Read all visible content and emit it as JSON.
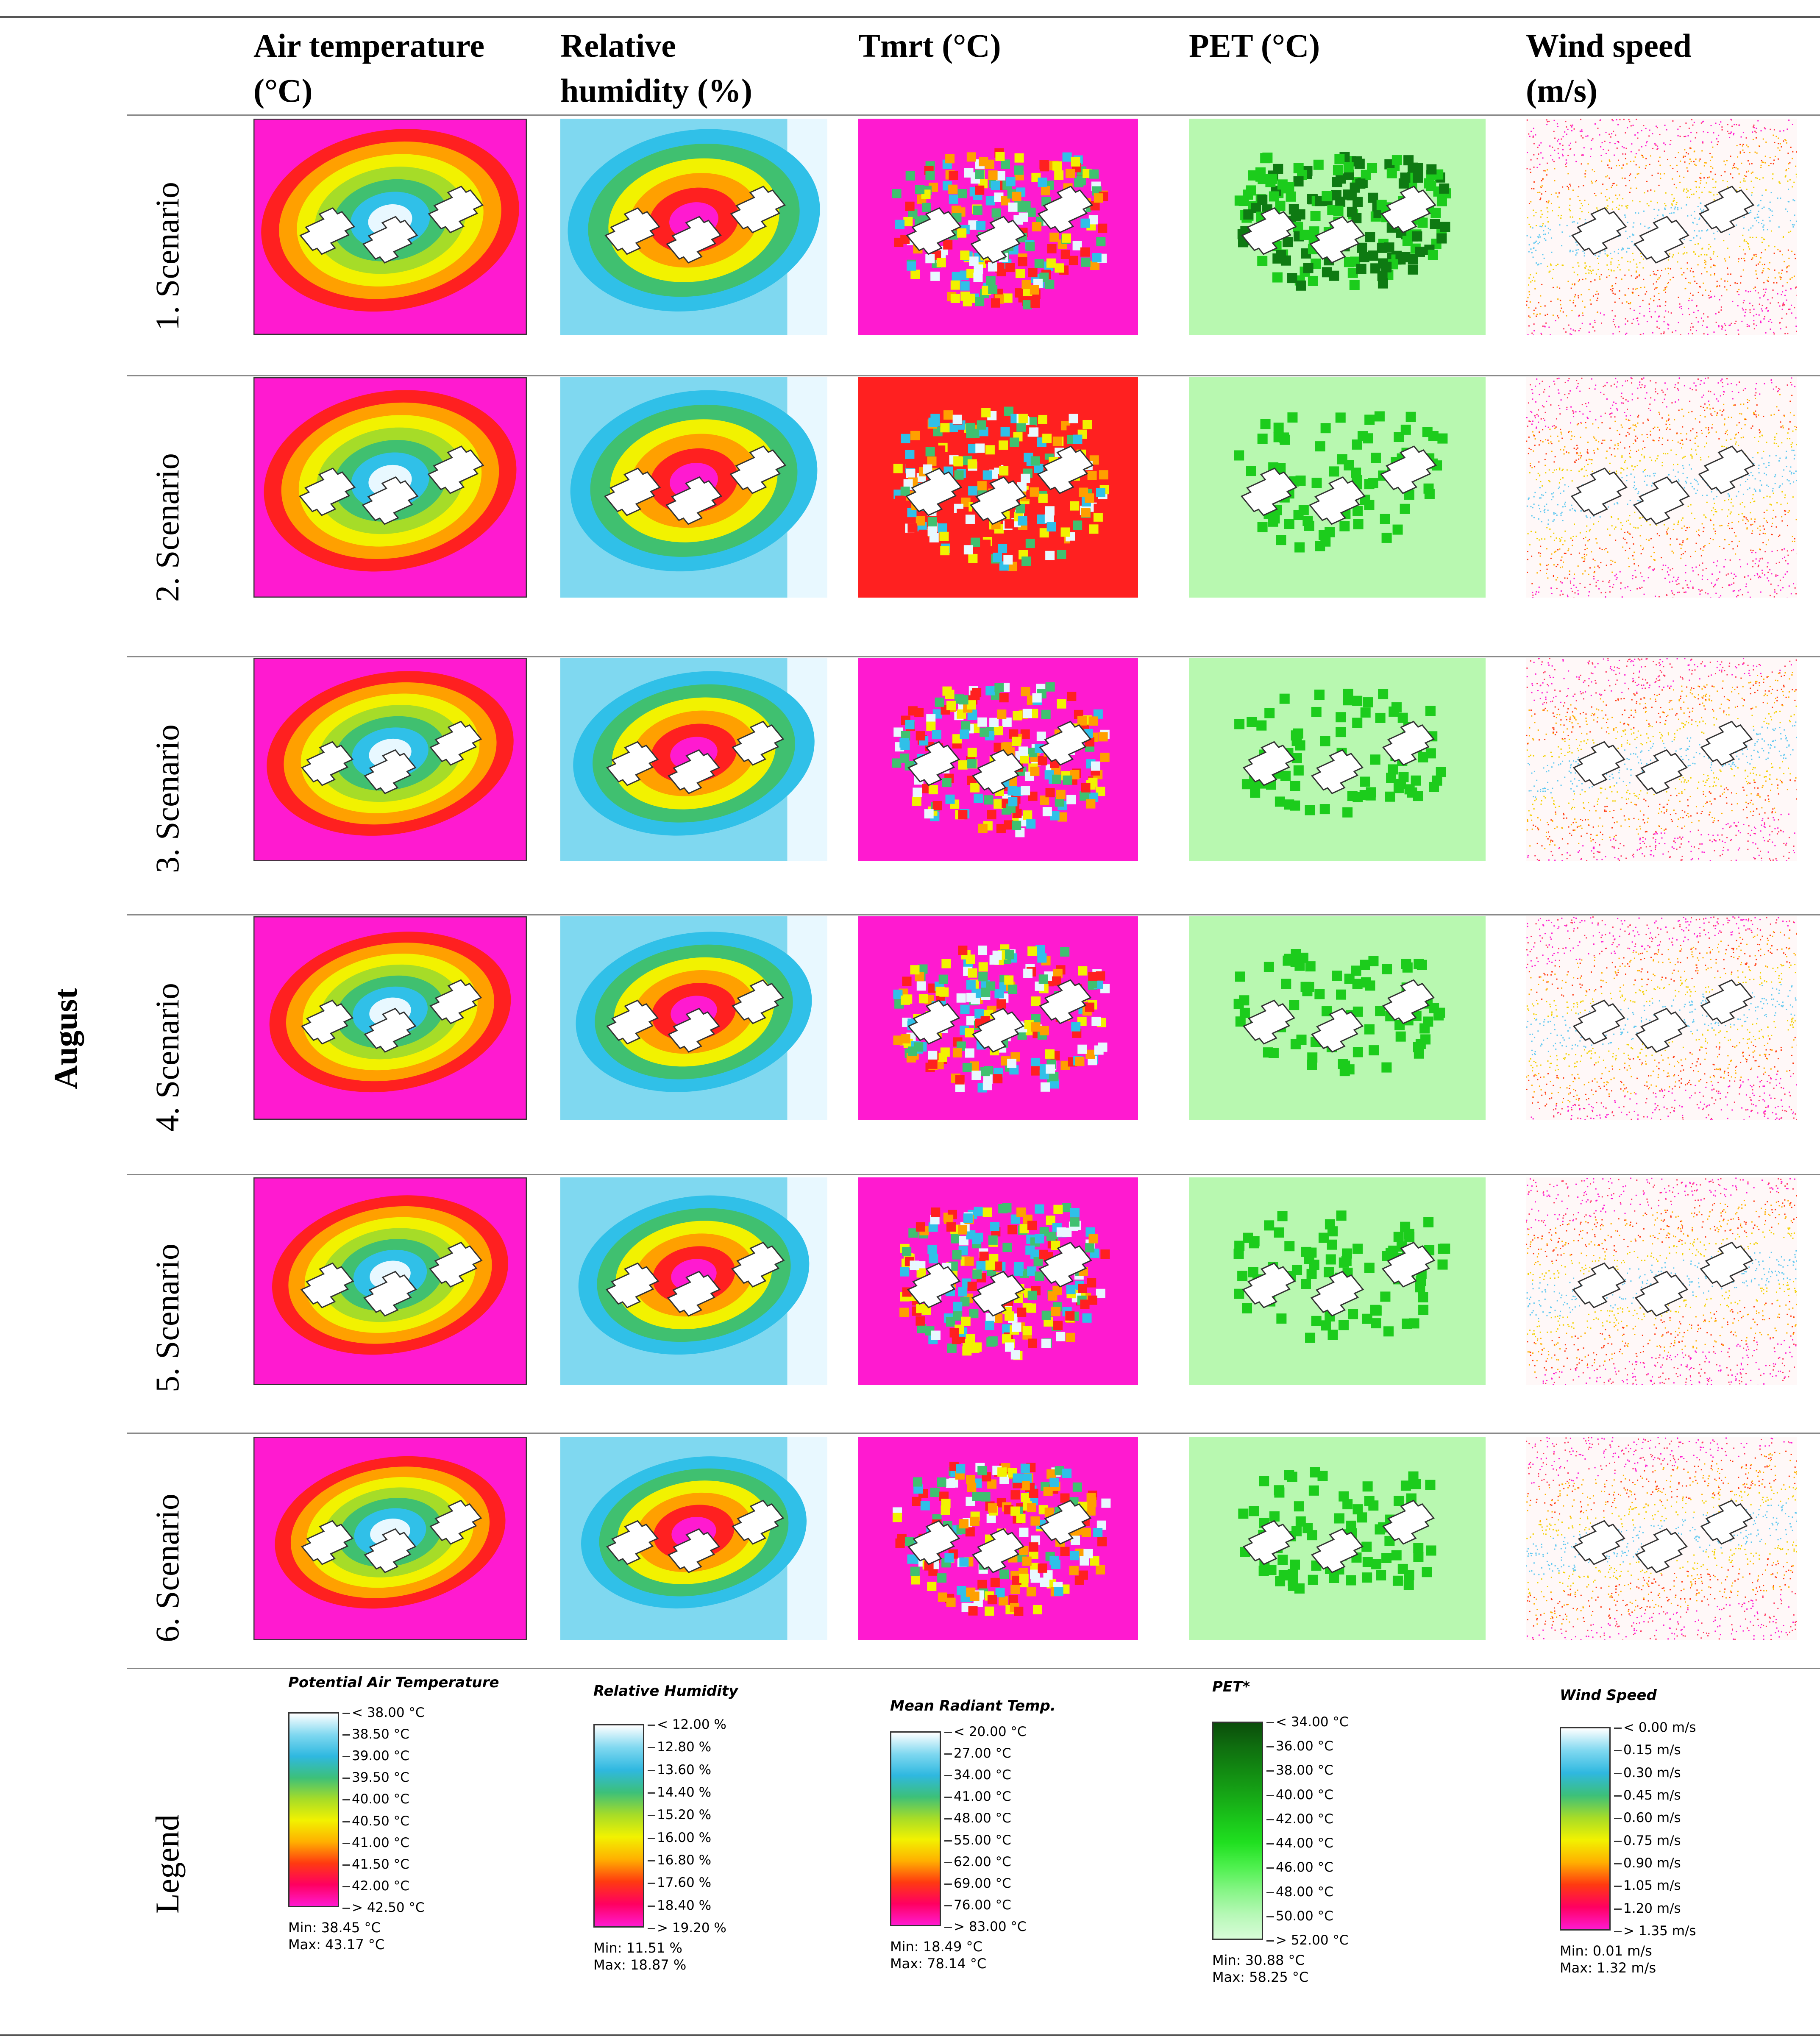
{
  "month": "August",
  "columns": [
    {
      "title": "Air temperature\n(°C)"
    },
    {
      "title": "Relative\nhumidity (%)"
    },
    {
      "title": "Tmrt (°C)"
    },
    {
      "title": "PET (°C)"
    },
    {
      "title": "Wind speed\n(m/s)"
    }
  ],
  "rows": [
    {
      "label": "1. Scenario"
    },
    {
      "label": "2. Scenario"
    },
    {
      "label": "3. Scenario"
    },
    {
      "label": "4. Scenario"
    },
    {
      "label": "5. Scenario"
    },
    {
      "label": "6. Scenario"
    }
  ],
  "legend_row_label": "Legend",
  "legends": [
    {
      "title": "Potential Air Temperature",
      "ticks": [
        "< 38.00 °C",
        "38.50 °C",
        "39.00 °C",
        "39.50 °C",
        "40.00 °C",
        "40.50 °C",
        "41.00 °C",
        "41.50 °C",
        "42.00 °C",
        "> 42.50 °C"
      ],
      "min": "Min: 38.45 °C",
      "max": "Max: 43.17 °C",
      "colors": [
        "#ffffff",
        "#7fd8f0",
        "#2fb8e0",
        "#3cc07a",
        "#a6dc28",
        "#f2f200",
        "#ffb000",
        "#ff3a10",
        "#ff0060",
        "#ff1ad0"
      ]
    },
    {
      "title": "Relative Humidity",
      "ticks": [
        "< 12.00 %",
        "12.80 %",
        "13.60 %",
        "14.40 %",
        "15.20 %",
        "16.00 %",
        "16.80 %",
        "17.60 %",
        "18.40 %",
        "> 19.20 %"
      ],
      "min": "Min: 11.51 %",
      "max": "Max: 18.87 %",
      "colors": [
        "#ffffff",
        "#7fd8f0",
        "#2fb8e0",
        "#3cc07a",
        "#a6dc28",
        "#f2f200",
        "#ffb000",
        "#ff3a10",
        "#ff0060",
        "#ff1ad0"
      ]
    },
    {
      "title": "Mean Radiant Temp.",
      "ticks": [
        "< 20.00 °C",
        "27.00 °C",
        "34.00 °C",
        "41.00 °C",
        "48.00 °C",
        "55.00 °C",
        "62.00 °C",
        "69.00 °C",
        "76.00 °C",
        "> 83.00 °C"
      ],
      "min": "Min: 18.49 °C",
      "max": "Max: 78.14 °C",
      "colors": [
        "#ffffff",
        "#7fd8f0",
        "#2fb8e0",
        "#3cc07a",
        "#a6dc28",
        "#f2f200",
        "#ffb000",
        "#ff3a10",
        "#ff0060",
        "#ff1ad0"
      ]
    },
    {
      "title": "PET*",
      "ticks": [
        "< 34.00 °C",
        "36.00 °C",
        "38.00 °C",
        "40.00 °C",
        "42.00 °C",
        "44.00 °C",
        "46.00 °C",
        "48.00 °C",
        "50.00 °C",
        "> 52.00 °C"
      ],
      "min": "Min: 30.88 °C",
      "max": "Max: 58.25 °C",
      "colors": [
        "#0b4d0b",
        "#0f6e0f",
        "#128a12",
        "#16a616",
        "#1ac41a",
        "#20e020",
        "#4ef04e",
        "#86f586",
        "#b6f8b6",
        "#d8fcd8"
      ]
    },
    {
      "title": "Wind Speed",
      "ticks": [
        "< 0.00 m/s",
        "0.15 m/s",
        "0.30 m/s",
        "0.45 m/s",
        "0.60 m/s",
        "0.75 m/s",
        "0.90 m/s",
        "1.05 m/s",
        "1.20 m/s",
        "> 1.35 m/s"
      ],
      "min": "Min: 0.01 m/s",
      "max": "Max: 1.32 m/s",
      "colors": [
        "#ffffff",
        "#7fd8f0",
        "#2fb8e0",
        "#3cc07a",
        "#a6dc28",
        "#f2f200",
        "#ffb000",
        "#ff3a10",
        "#ff0060",
        "#ff1ad0"
      ]
    }
  ],
  "colors": {
    "hot": "#ff1ad0",
    "warm_red": "#ff2020",
    "orange": "#ffa000",
    "yellow": "#f2f200",
    "green": "#40c070",
    "cyan": "#30c0e8",
    "cool": "#e8f8ff",
    "pet_bg": "#b8f8b0",
    "pet_dark": "#0e7a12",
    "pet_mid": "#1ccc1c"
  }
}
